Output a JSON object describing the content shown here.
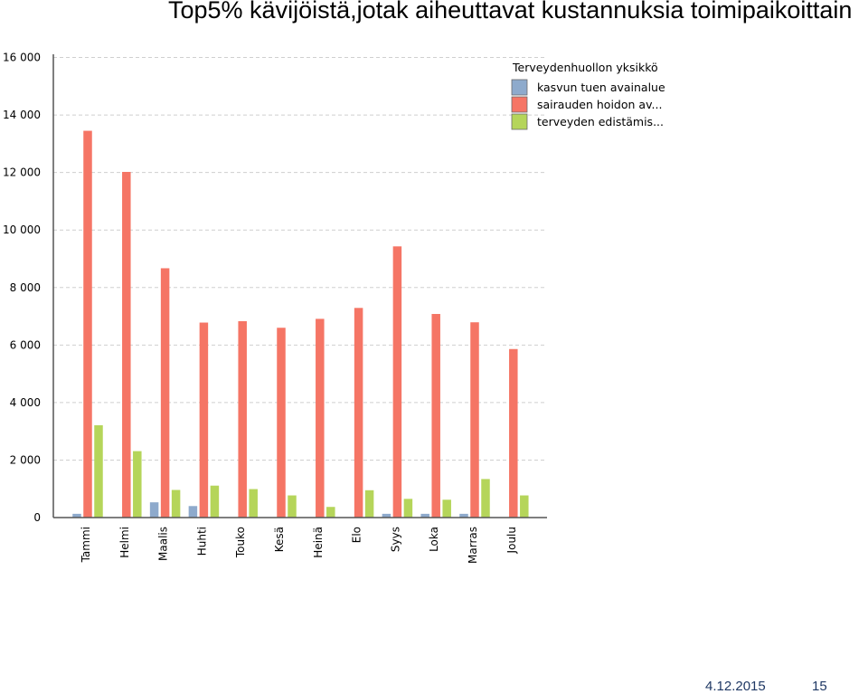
{
  "slide": {
    "title": "Top5% kävijöistä,jotak aiheuttavat  kustannuksia toimipaikoittain",
    "date": "4.12.2015",
    "page_number": "15"
  },
  "chart_data": {
    "type": "bar",
    "categories": [
      "Tammi",
      "Helmi",
      "Maalis",
      "Huhti",
      "Touko",
      "Kesä",
      "Heinä",
      "Elo",
      "Syys",
      "Loka",
      "Marras",
      "Joulu"
    ],
    "series": [
      {
        "name": "kasvun tuen avainalue",
        "color": "#8eaacc",
        "values": [
          130,
          0,
          530,
          400,
          0,
          0,
          0,
          0,
          130,
          130,
          130,
          0
        ]
      },
      {
        "name": "sairauden hoidon av...",
        "color": "#f57565",
        "values": [
          13450,
          12020,
          8670,
          6780,
          6830,
          6600,
          6910,
          7290,
          9430,
          7080,
          6790,
          5860
        ]
      },
      {
        "name": "terveyden edistämis...",
        "color": "#b5d55a",
        "values": [
          3210,
          2310,
          960,
          1110,
          990,
          770,
          370,
          950,
          650,
          620,
          1340,
          770
        ]
      }
    ],
    "legend_title": "Terveydenhuollon yksikkö",
    "y_ticks": [
      "0",
      "2 000",
      "4 000",
      "6 000",
      "8 000",
      "10 000",
      "12 000",
      "14 000",
      "16 000"
    ],
    "ylim": [
      0,
      16000
    ],
    "grid": true,
    "legend_position": "top-right"
  }
}
